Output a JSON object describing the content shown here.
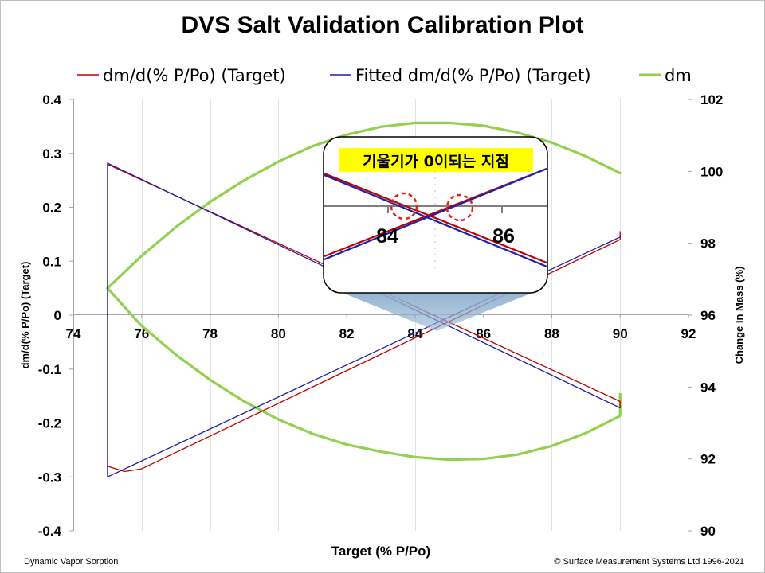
{
  "chart_data": {
    "type": "line",
    "title": "DVS Salt Validation Calibration Plot",
    "xlabel": "Target (% P/Po)",
    "ylabel": "dm/d(% P/Po) (Target)",
    "y2label": "Change In Mass (%)",
    "xlim": [
      74,
      92
    ],
    "ylim": [
      -0.4,
      0.4
    ],
    "y2lim": [
      90,
      102
    ],
    "x_ticks": [
      "74",
      "76",
      "78",
      "80",
      "82",
      "84",
      "86",
      "88",
      "90",
      "92"
    ],
    "y_ticks": [
      "0.4",
      "0.3",
      "0.2",
      "0.1",
      "0",
      "-0.1",
      "-0.2",
      "-0.3",
      "-0.4"
    ],
    "y2_ticks": [
      "102",
      "100",
      "98",
      "96",
      "94",
      "92",
      "90"
    ],
    "grid": "vertical",
    "legend_position": "top",
    "series": [
      {
        "name": "dm/d(% P/Po) (Target)",
        "color": "#c00000",
        "axis": "left",
        "segments": [
          [
            [
              75,
              0.28
            ],
            [
              90,
              -0.16
            ],
            [
              90,
              -0.17
            ]
          ],
          [
            [
              75,
              -0.28
            ],
            [
              75.5,
              -0.29
            ],
            [
              76,
              -0.285
            ],
            [
              90,
              0.14
            ],
            [
              90,
              0.155
            ]
          ]
        ]
      },
      {
        "name": "Fitted dm/d(% P/Po) (Target)",
        "color": "#1f1f9f",
        "axis": "left",
        "segments": [
          [
            [
              75,
              0.28
            ],
            [
              75,
              -0.3
            ],
            [
              90,
              0.145
            ]
          ],
          [
            [
              75,
              0.282
            ],
            [
              90,
              -0.172
            ]
          ]
        ]
      },
      {
        "name": "dm",
        "color": "#92d050",
        "axis": "right",
        "segments": [
          [
            [
              75,
              96.75
            ],
            [
              76,
              97.65
            ],
            [
              77,
              98.45
            ],
            [
              78,
              99.15
            ],
            [
              79,
              99.75
            ],
            [
              80,
              100.27
            ],
            [
              81,
              100.7
            ],
            [
              82,
              101.02
            ],
            [
              83,
              101.24
            ],
            [
              84,
              101.35
            ],
            [
              85,
              101.35
            ],
            [
              86,
              101.27
            ],
            [
              87,
              101.08
            ],
            [
              88,
              100.8
            ],
            [
              89,
              100.42
            ],
            [
              90,
              99.95
            ]
          ],
          [
            [
              75,
              96.75
            ],
            [
              76,
              95.7
            ],
            [
              77,
              94.9
            ],
            [
              78,
              94.2
            ],
            [
              79,
              93.6
            ],
            [
              80,
              93.1
            ],
            [
              81,
              92.7
            ],
            [
              82,
              92.4
            ],
            [
              83,
              92.2
            ],
            [
              84,
              92.05
            ],
            [
              85,
              91.98
            ],
            [
              86,
              92.0
            ],
            [
              87,
              92.12
            ],
            [
              88,
              92.36
            ],
            [
              89,
              92.72
            ],
            [
              90,
              93.2
            ],
            [
              90,
              93.8
            ]
          ]
        ]
      }
    ],
    "annotations": [
      {
        "text": "기울기가 0이되는 지점",
        "type": "zoom-callout",
        "x": 84.75,
        "y": -0.02
      }
    ],
    "zoom_inset": {
      "label": "기울기가 0이되는 지점",
      "tick_labels": [
        "84",
        "86"
      ]
    }
  },
  "footer": {
    "left": "Dynamic Vapor Sorption",
    "right": "© Surface Measurement Systems Ltd 1996-2021"
  }
}
